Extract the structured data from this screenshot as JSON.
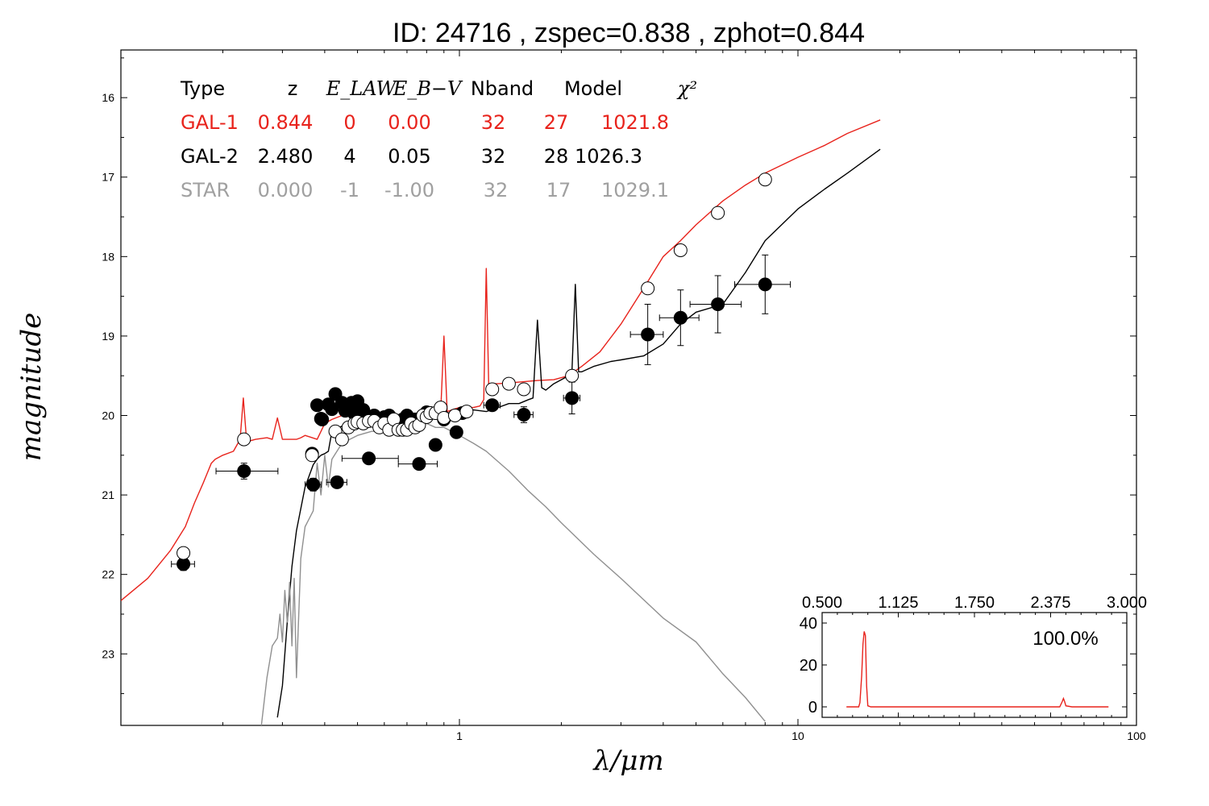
{
  "chart_data": {
    "type": "scatter",
    "title": "ID:  24716 , zspec=0.838 , zphot=0.844",
    "xlabel": "λ/μm",
    "ylabel": "magnitude",
    "xscale": "log",
    "xlim": [
      0.1,
      100
    ],
    "ylim": [
      23.9,
      15.4
    ],
    "x_ticks": [
      1,
      10,
      100
    ],
    "x_tick_labels": [
      "1",
      "10",
      "100"
    ],
    "y_ticks": [
      16,
      17,
      18,
      19,
      20,
      21,
      22,
      23
    ],
    "y_tick_labels": [
      "16",
      "17",
      "18",
      "19",
      "20",
      "21",
      "22",
      "23"
    ],
    "fit_table": {
      "headers": [
        "Type",
        "z",
        "E_LAW",
        "E_B−V",
        "Nband",
        "Model",
        "χ²"
      ],
      "rows": [
        {
          "cells": [
            "GAL-1",
            "0.844",
            "0",
            "0.00",
            "32",
            "27",
            "1021.8"
          ],
          "color": "#e8231c"
        },
        {
          "cells": [
            "GAL-2",
            "2.480",
            "4",
            "0.05",
            "32",
            "28",
            "1026.3"
          ],
          "color": "#000000"
        },
        {
          "cells": [
            "STAR",
            "0.000",
            "-1",
            "-1.00",
            "32",
            "17",
            "1029.1"
          ],
          "color": "#a0a0a0"
        }
      ]
    },
    "series": [
      {
        "name": "GAL-1",
        "kind": "line",
        "color": "#e8231c",
        "x": [
          0.1,
          0.12,
          0.14,
          0.155,
          0.165,
          0.175,
          0.185,
          0.19,
          0.2,
          0.215,
          0.225,
          0.23,
          0.235,
          0.24,
          0.25,
          0.27,
          0.28,
          0.29,
          0.3,
          0.31,
          0.32,
          0.33,
          0.34,
          0.35,
          0.38,
          0.4,
          0.42,
          0.45,
          0.5,
          0.55,
          0.6,
          0.65,
          0.7,
          0.75,
          0.8,
          0.85,
          0.88,
          0.9,
          0.92,
          0.95,
          1.0,
          1.05,
          1.1,
          1.15,
          1.18,
          1.2,
          1.22,
          1.3,
          1.5,
          1.7,
          1.9,
          2.1,
          2.3,
          2.6,
          3.0,
          3.5,
          4.0,
          4.5,
          5.0,
          6.0,
          7.0,
          8.0,
          10.0,
          12.0,
          14.0,
          17.5
        ],
        "y": [
          22.33,
          22.05,
          21.7,
          21.4,
          21.1,
          20.85,
          20.6,
          20.55,
          20.5,
          20.45,
          20.3,
          19.78,
          20.3,
          20.32,
          20.3,
          20.28,
          20.3,
          20.03,
          20.3,
          20.3,
          20.3,
          20.3,
          20.28,
          20.25,
          20.3,
          20.1,
          20.05,
          20.0,
          20.0,
          20.02,
          20.0,
          20.02,
          19.98,
          19.98,
          19.95,
          19.95,
          19.97,
          19.0,
          19.95,
          19.93,
          19.9,
          19.9,
          19.9,
          19.88,
          19.8,
          18.15,
          19.6,
          19.6,
          19.58,
          19.56,
          19.55,
          19.5,
          19.38,
          19.2,
          18.85,
          18.4,
          18.0,
          17.8,
          17.6,
          17.3,
          17.1,
          16.95,
          16.75,
          16.6,
          16.45,
          16.28
        ]
      },
      {
        "name": "GAL-2",
        "kind": "line",
        "color": "#000000",
        "x": [
          0.29,
          0.3,
          0.31,
          0.32,
          0.33,
          0.35,
          0.37,
          0.38,
          0.39,
          0.4,
          0.41,
          0.42,
          0.43,
          0.44,
          0.46,
          0.5,
          0.55,
          0.6,
          0.65,
          0.7,
          0.75,
          0.8,
          0.85,
          0.9,
          0.95,
          1.0,
          1.05,
          1.1,
          1.2,
          1.3,
          1.4,
          1.5,
          1.6,
          1.65,
          1.7,
          1.75,
          1.8,
          1.9,
          2.0,
          2.1,
          2.15,
          2.2,
          2.25,
          2.3,
          2.5,
          2.8,
          3.0,
          3.5,
          4.0,
          4.5,
          5.0,
          6.0,
          7.0,
          8.0,
          10.0,
          12.0,
          14.0,
          17.5
        ],
        "y": [
          23.8,
          23.4,
          22.6,
          21.9,
          21.45,
          20.9,
          20.62,
          20.55,
          20.5,
          20.48,
          20.45,
          20.2,
          20.2,
          20.15,
          20.12,
          20.12,
          20.05,
          20.05,
          20.02,
          20.02,
          19.98,
          19.95,
          19.97,
          19.95,
          19.98,
          20.0,
          19.95,
          19.93,
          19.95,
          19.9,
          19.85,
          19.85,
          19.8,
          19.78,
          18.8,
          19.65,
          19.68,
          19.6,
          19.55,
          19.5,
          19.45,
          18.35,
          19.45,
          19.45,
          19.38,
          19.32,
          19.3,
          19.25,
          19.1,
          18.85,
          18.7,
          18.6,
          18.2,
          17.8,
          17.4,
          17.15,
          16.95,
          16.65
        ]
      },
      {
        "name": "STAR",
        "kind": "line",
        "color": "#909090",
        "x": [
          0.26,
          0.27,
          0.28,
          0.29,
          0.295,
          0.3,
          0.305,
          0.31,
          0.315,
          0.32,
          0.325,
          0.33,
          0.34,
          0.35,
          0.37,
          0.38,
          0.39,
          0.4,
          0.41,
          0.42,
          0.45,
          0.5,
          0.55,
          0.6,
          0.65,
          0.7,
          0.75,
          0.8,
          0.85,
          0.9,
          1.0,
          1.1,
          1.2,
          1.4,
          1.6,
          1.8,
          2.0,
          2.5,
          3.0,
          4.0,
          5.0,
          6.0,
          7.0,
          8.0
        ],
        "y": [
          23.9,
          23.3,
          22.9,
          22.8,
          22.5,
          22.85,
          22.2,
          22.6,
          22.1,
          22.9,
          22.05,
          23.3,
          21.8,
          21.4,
          21.2,
          20.6,
          21.0,
          20.5,
          20.9,
          20.55,
          20.35,
          20.25,
          20.2,
          20.2,
          20.15,
          20.2,
          20.15,
          20.1,
          20.15,
          20.15,
          20.25,
          20.35,
          20.45,
          20.7,
          20.95,
          21.15,
          21.35,
          21.75,
          22.05,
          22.55,
          22.85,
          23.25,
          23.55,
          23.85
        ]
      },
      {
        "name": "observed",
        "kind": "points",
        "marker": "filled",
        "color": "#000000",
        "x": [
          0.153,
          0.231,
          0.367,
          0.37,
          0.38,
          0.39,
          0.393,
          0.41,
          0.42,
          0.43,
          0.435,
          0.45,
          0.46,
          0.47,
          0.48,
          0.49,
          0.5,
          0.52,
          0.54,
          0.56,
          0.58,
          0.6,
          0.62,
          0.64,
          0.66,
          0.68,
          0.7,
          0.72,
          0.74,
          0.76,
          0.78,
          0.8,
          0.82,
          0.85,
          0.88,
          0.9,
          0.98,
          1.02,
          1.25,
          1.55,
          2.15,
          3.6,
          4.5,
          5.8,
          8.0
        ],
        "y": [
          21.87,
          20.7,
          20.48,
          20.87,
          19.87,
          20.04,
          20.05,
          19.86,
          19.92,
          19.73,
          20.84,
          19.84,
          19.94,
          19.9,
          19.84,
          19.98,
          19.82,
          19.93,
          20.54,
          20.0,
          20.06,
          20.02,
          20.0,
          20.13,
          20.13,
          20.05,
          20.0,
          20.12,
          20.05,
          20.61,
          20.0,
          19.96,
          19.97,
          20.37,
          19.97,
          20.05,
          20.21,
          19.97,
          19.87,
          19.99,
          19.78,
          18.98,
          18.77,
          18.6,
          18.35
        ],
        "yerr": [
          0.08,
          0.1,
          0.05,
          0.08,
          0.05,
          0.05,
          0.05,
          0.05,
          0.05,
          0.05,
          0.05,
          0.05,
          0.05,
          0.05,
          0.05,
          0.05,
          0.05,
          0.05,
          0.05,
          0.05,
          0.05,
          0.05,
          0.05,
          0.05,
          0.05,
          0.05,
          0.05,
          0.05,
          0.05,
          0.05,
          0.05,
          0.05,
          0.05,
          0.05,
          0.05,
          0.05,
          0.05,
          0.05,
          0.05,
          0.1,
          0.2,
          0.38,
          0.35,
          0.36,
          0.37
        ],
        "xerr_lo": [
          0.012,
          0.04,
          0.005,
          0.02,
          0.005,
          0.005,
          0.005,
          0.005,
          0.005,
          0.005,
          0.03,
          0.005,
          0.005,
          0.005,
          0.005,
          0.005,
          0.005,
          0.005,
          0.09,
          0.005,
          0.005,
          0.005,
          0.005,
          0.005,
          0.005,
          0.005,
          0.005,
          0.005,
          0.005,
          0.1,
          0.005,
          0.005,
          0.005,
          0.03,
          0.005,
          0.005,
          0.005,
          0.005,
          0.07,
          0.1,
          0.12,
          0.4,
          0.6,
          1.0,
          1.5
        ],
        "xerr_hi": [
          0.012,
          0.06,
          0.005,
          0.02,
          0.005,
          0.005,
          0.005,
          0.005,
          0.005,
          0.005,
          0.03,
          0.005,
          0.005,
          0.005,
          0.005,
          0.005,
          0.005,
          0.005,
          0.12,
          0.005,
          0.005,
          0.005,
          0.005,
          0.005,
          0.005,
          0.005,
          0.005,
          0.005,
          0.005,
          0.1,
          0.005,
          0.005,
          0.005,
          0.03,
          0.005,
          0.005,
          0.005,
          0.005,
          0.07,
          0.1,
          0.12,
          0.4,
          0.6,
          1.0,
          1.5
        ]
      },
      {
        "name": "model",
        "kind": "points",
        "marker": "open",
        "color": "#000000",
        "x": [
          0.153,
          0.231,
          0.367,
          0.43,
          0.45,
          0.47,
          0.49,
          0.5,
          0.52,
          0.54,
          0.56,
          0.58,
          0.6,
          0.62,
          0.64,
          0.66,
          0.68,
          0.7,
          0.72,
          0.74,
          0.76,
          0.78,
          0.8,
          0.82,
          0.85,
          0.88,
          0.9,
          0.97,
          1.05,
          1.25,
          1.4,
          1.55,
          2.15,
          3.6,
          4.5,
          5.8,
          8.0
        ],
        "y": [
          21.73,
          20.3,
          20.5,
          20.2,
          20.3,
          20.15,
          20.1,
          20.08,
          20.1,
          20.07,
          20.07,
          20.15,
          20.1,
          20.18,
          20.05,
          20.18,
          20.18,
          20.18,
          20.1,
          20.15,
          20.12,
          20.0,
          20.02,
          19.97,
          19.97,
          19.9,
          20.03,
          20.0,
          19.95,
          19.67,
          19.6,
          19.67,
          19.5,
          18.4,
          17.92,
          17.45,
          17.03
        ]
      }
    ],
    "inset": {
      "type": "line",
      "color": "#e8231c",
      "xlim": [
        0.5,
        3.0
      ],
      "ylim": [
        -5,
        45
      ],
      "x_tick_labels": [
        "0.500",
        "1.125",
        "1.750",
        "2.375",
        "3.000"
      ],
      "y_tick_labels": [
        "0",
        "20",
        "40"
      ],
      "label": "100.0%",
      "x": [
        0.7,
        0.8,
        0.81,
        0.825,
        0.835,
        0.845,
        0.855,
        0.865,
        0.875,
        0.9,
        2.45,
        2.47,
        2.48,
        2.49,
        2.5,
        2.55,
        2.85
      ],
      "y": [
        0,
        0,
        2,
        15,
        30,
        36,
        34,
        10,
        0.5,
        0,
        0,
        2.5,
        4,
        2.5,
        0.5,
        0,
        0
      ]
    }
  }
}
